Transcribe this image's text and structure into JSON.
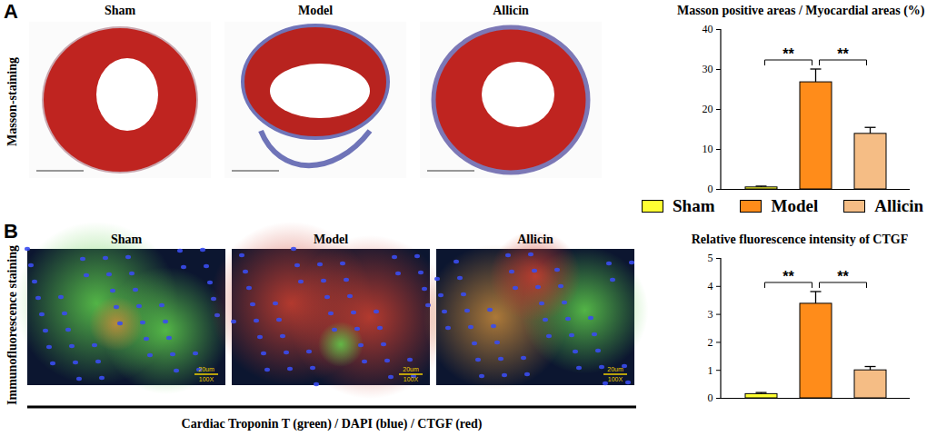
{
  "figure": {
    "panels": [
      {
        "label": "A",
        "row_title": "Masson-staining",
        "images": [
          "Sham",
          "Model",
          "Allicin"
        ]
      },
      {
        "label": "B",
        "row_title": "Immunofluorescence staining",
        "images": [
          "Sham",
          "Model",
          "Allicin"
        ],
        "scale_bar": "20um",
        "magnification": "100X",
        "caption": "Cardiac Troponin T (green) / DAPI (blue) / CTGF (red)"
      }
    ]
  },
  "chart_data": [
    {
      "type": "bar",
      "title": "Masson positive areas /  Myocardial areas (%)",
      "categories": [
        "Sham",
        "Model",
        "Allicin"
      ],
      "values": [
        0.5,
        26.8,
        13.9
      ],
      "errors": [
        0.2,
        3.2,
        1.5
      ],
      "colors": [
        "#ffff33",
        "#ff8c1a",
        "#f5bd85"
      ],
      "ylim": [
        0,
        40
      ],
      "yticks": [
        0,
        10,
        20,
        30,
        40
      ],
      "tick_labels": "y",
      "significance": [
        {
          "from": "Sham",
          "to": "Model",
          "label": "**"
        },
        {
          "from": "Model",
          "to": "Allicin",
          "label": "**"
        }
      ]
    },
    {
      "type": "bar",
      "title": "Relative fluorescence intensity of CTGF",
      "categories": [
        "Sham",
        "Model",
        "Allicin"
      ],
      "values": [
        0.15,
        3.38,
        1.0
      ],
      "errors": [
        0.04,
        0.42,
        0.12
      ],
      "colors": [
        "#ffff33",
        "#ff8c1a",
        "#f5bd85"
      ],
      "ylim": [
        0,
        5
      ],
      "yticks": [
        0,
        1,
        2,
        3,
        4,
        5
      ],
      "tick_labels": "y",
      "legend": "top",
      "significance": [
        {
          "from": "Sham",
          "to": "Model",
          "label": "**"
        },
        {
          "from": "Model",
          "to": "Allicin",
          "label": "**"
        }
      ]
    }
  ]
}
